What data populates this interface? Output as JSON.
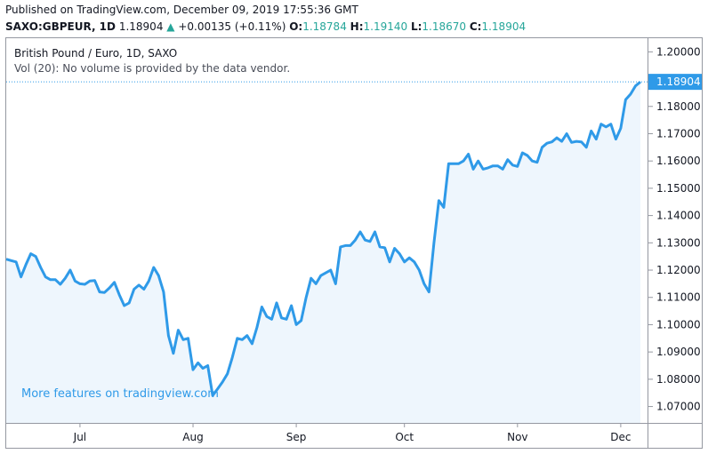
{
  "header": {
    "published": "Published on TradingView.com, December 09, 2019 17:55:36 GMT",
    "symbol": "SAXO:GBPEUR, 1D",
    "last": "1.18904",
    "change_arrow": "▲",
    "change": "+0.00135 (+0.11%)",
    "open_label": "O:",
    "open": "1.18784",
    "high_label": "H:",
    "high": "1.19140",
    "low_label": "L:",
    "low": "1.18670",
    "close_label": "C:",
    "close": "1.18904"
  },
  "legend": {
    "title": "British Pound / Euro, 1D, SAXO",
    "volume_note": "Vol (20): No volume is provided by the data vendor."
  },
  "promo": "More features on tradingview.com",
  "last_price_label": "1.18904",
  "colors": {
    "line": "#2f9ae8",
    "fill": "#eef6fd",
    "last_price_bg": "#2f9ae8",
    "up": "#26a69a"
  },
  "chart_data": {
    "type": "area",
    "title": "British Pound / Euro, 1D, SAXO",
    "ylim": [
      1.064,
      1.205
    ],
    "yticks": [
      "1.20000",
      "1.19000",
      "1.18000",
      "1.17000",
      "1.16000",
      "1.15000",
      "1.14000",
      "1.13000",
      "1.12000",
      "1.11000",
      "1.10000",
      "1.09000",
      "1.08000",
      "1.07000"
    ],
    "xticks": [
      {
        "label": "Jul",
        "index": 15
      },
      {
        "label": "Aug",
        "index": 38
      },
      {
        "label": "Sep",
        "index": 59
      },
      {
        "label": "Oct",
        "index": 81
      },
      {
        "label": "Nov",
        "index": 104
      },
      {
        "label": "Dec",
        "index": 125
      }
    ],
    "values": [
      1.124,
      1.1235,
      1.123,
      1.1175,
      1.122,
      1.126,
      1.125,
      1.121,
      1.1175,
      1.1165,
      1.1165,
      1.1148,
      1.117,
      1.12,
      1.116,
      1.115,
      1.1148,
      1.116,
      1.1162,
      1.112,
      1.1118,
      1.1135,
      1.1155,
      1.111,
      1.107,
      1.108,
      1.113,
      1.1145,
      1.113,
      1.116,
      1.121,
      1.118,
      1.112,
      1.096,
      1.0895,
      1.098,
      1.0945,
      1.095,
      1.0835,
      1.086,
      1.084,
      1.085,
      1.074,
      1.0765,
      1.079,
      1.082,
      1.088,
      1.095,
      1.0945,
      1.096,
      1.093,
      1.099,
      1.1065,
      1.103,
      1.102,
      1.108,
      1.1025,
      1.102,
      1.107,
      1.1,
      1.1015,
      1.11,
      1.117,
      1.115,
      1.118,
      1.119,
      1.12,
      1.115,
      1.1285,
      1.129,
      1.129,
      1.131,
      1.134,
      1.131,
      1.1305,
      1.134,
      1.1285,
      1.1282,
      1.123,
      1.128,
      1.126,
      1.123,
      1.1245,
      1.123,
      1.12,
      1.115,
      1.112,
      1.13,
      1.1455,
      1.143,
      1.159,
      1.159,
      1.159,
      1.16,
      1.1625,
      1.157,
      1.16,
      1.157,
      1.1575,
      1.1582,
      1.1582,
      1.157,
      1.1605,
      1.1585,
      1.158,
      1.163,
      1.162,
      1.16,
      1.1595,
      1.165,
      1.1665,
      1.167,
      1.1685,
      1.1672,
      1.17,
      1.1668,
      1.1672,
      1.167,
      1.165,
      1.171,
      1.168,
      1.1735,
      1.1725,
      1.1735,
      1.168,
      1.172,
      1.1825,
      1.1845,
      1.1875,
      1.189
    ]
  }
}
